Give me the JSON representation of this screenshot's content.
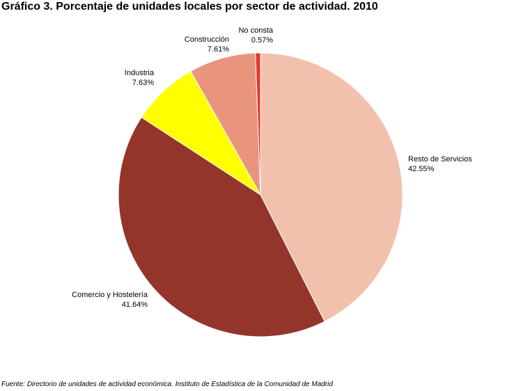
{
  "title": "Gráfico 3. Porcentaje de unidades locales por sector de actividad. 2010",
  "source": "Fuente: Directorio de unidades de actividad económica. Instituto de Estadística de la Comunidad de Madrid",
  "chart_data": {
    "type": "pie",
    "title": "Gráfico 3. Porcentaje de unidades locales por sector de actividad. 2010",
    "start": "12 o'clock",
    "direction": "clockwise",
    "slices": [
      {
        "label": "Resto de Servicios",
        "value": 42.55,
        "value_text": "42.55%",
        "color": "#F2C1AD"
      },
      {
        "label": "Comercio y Hostelería",
        "value": 41.64,
        "value_text": "41.64%",
        "color": "#94352C"
      },
      {
        "label": "Industria",
        "value": 7.63,
        "value_text": "7.63%",
        "color": "#FFFF00"
      },
      {
        "label": "Construcción",
        "value": 7.61,
        "value_text": "7.61%",
        "color": "#E9957E"
      },
      {
        "label": "No consta",
        "value": 0.57,
        "value_text": "0.57%",
        "color": "#E23A2A"
      }
    ]
  }
}
